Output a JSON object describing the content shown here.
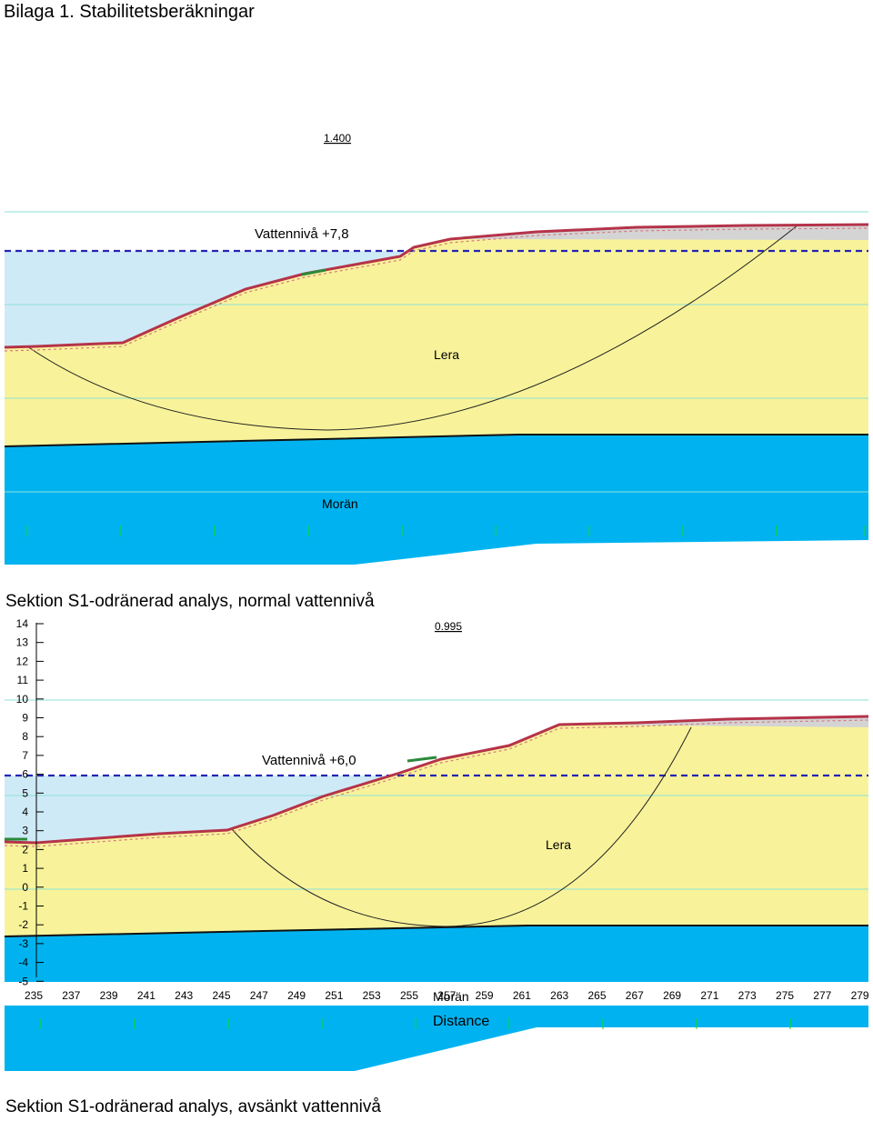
{
  "page_title": "Bilaga 1. Stabilitetsberäkningar",
  "diagram1": {
    "factor_of_safety": "1.400",
    "water_level_label": "Vattennivå +7,8",
    "soil_clay": "Lera",
    "soil_till": "Morän",
    "caption": "Sektion S1-odränerad analys, normal vattennivå"
  },
  "diagram2": {
    "factor_of_safety": "0.995",
    "water_level_label": "Vattennivå +6,0",
    "soil_clay": "Lera",
    "soil_till": "Morän",
    "x_axis_label": "Distance",
    "y_ticks": [
      "14",
      "13",
      "12",
      "11",
      "10",
      "9",
      "8",
      "7",
      "6",
      "5",
      "4",
      "3",
      "2",
      "1",
      "0",
      "-1",
      "-2",
      "-3",
      "-4",
      "-5"
    ],
    "x_ticks": [
      "235",
      "237",
      "239",
      "241",
      "243",
      "245",
      "247",
      "249",
      "251",
      "253",
      "255",
      "257",
      "259",
      "261",
      "263",
      "265",
      "267",
      "269",
      "271",
      "273",
      "275",
      "277",
      "279"
    ],
    "caption": "Sektion S1-odränerad analys, avsänkt vattennivå"
  },
  "colors": {
    "water": "#cfeaf7",
    "clay": "#f8f39a",
    "till": "#00b3f0",
    "fill_layer": "#d4d4d4",
    "surface": "#b5334a",
    "water_line": "#2424b4",
    "grid_line": "#8ee0d6",
    "station_mark": "#16d916"
  }
}
